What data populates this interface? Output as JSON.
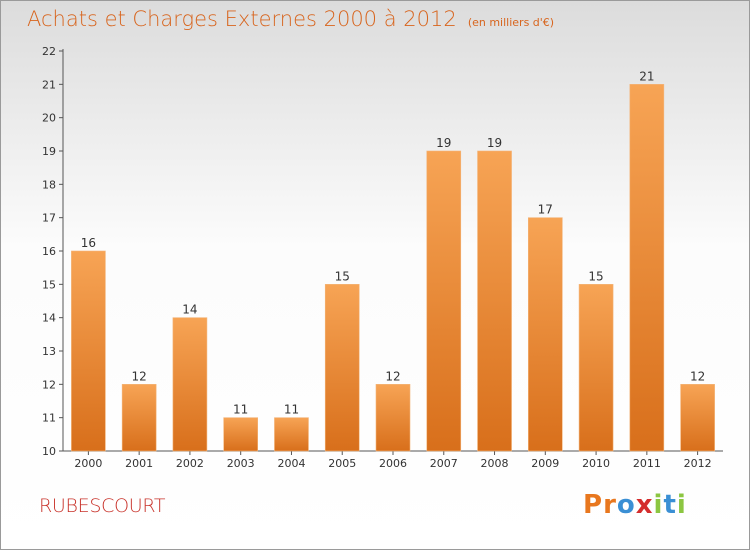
{
  "chart_data": {
    "type": "bar",
    "title": "Achats et Charges Externes 2000 à 2012",
    "subtitle": "(en milliers d'€)",
    "categories": [
      "2000",
      "2001",
      "2002",
      "2003",
      "2004",
      "2005",
      "2006",
      "2007",
      "2008",
      "2009",
      "2010",
      "2011",
      "2012"
    ],
    "values": [
      16,
      12,
      14,
      11,
      11,
      15,
      12,
      19,
      19,
      17,
      15,
      21,
      12
    ],
    "ylim": [
      10,
      22
    ],
    "yticks": [
      10,
      11,
      12,
      13,
      14,
      15,
      16,
      17,
      18,
      19,
      20,
      21,
      22
    ],
    "grid": false,
    "bar_color_top": "#f7a455",
    "bar_color_bottom": "#d86f1b"
  },
  "footer": {
    "commune": "RUBESCOURT"
  },
  "logo": {
    "text": "Proxiti",
    "letters": [
      "P",
      "r",
      "o",
      "x",
      "i",
      "t",
      "i"
    ],
    "colors": [
      "#e8771e",
      "#e8771e",
      "#3a8fd4",
      "#d42d2d",
      "#8cc641",
      "#3a8fd4",
      "#8cc641"
    ]
  }
}
